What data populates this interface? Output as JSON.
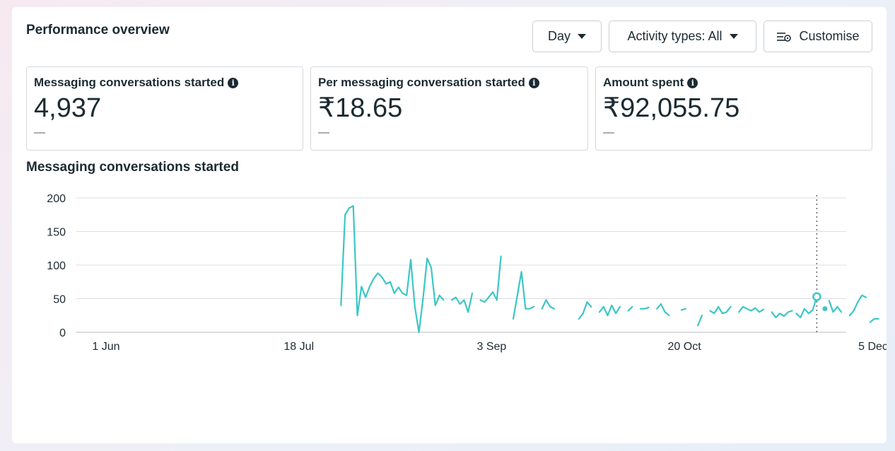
{
  "header": {
    "title": "Performance overview",
    "day_label": "Day",
    "activity_label": "Activity types: All",
    "customise_label": "Customise"
  },
  "cards": [
    {
      "label": "Messaging conversations started",
      "value": "4,937",
      "delta": "—"
    },
    {
      "label": "Per messaging conversation started",
      "value": "₹18.65",
      "delta": "—"
    },
    {
      "label": "Amount spent",
      "value": "₹92,055.75",
      "delta": "—"
    }
  ],
  "colors": {
    "line": "#3cc6c6",
    "grid": "#dcdfe3",
    "text": "#1c2b33"
  },
  "chart_data": {
    "type": "line",
    "title": "Messaging conversations started",
    "x_start": "1 Jun",
    "x_ticks": [
      {
        "label": "1 Jun",
        "day": 0
      },
      {
        "label": "18 Jul",
        "day": 47
      },
      {
        "label": "3 Sep",
        "day": 94
      },
      {
        "label": "20 Oct",
        "day": 141
      },
      {
        "label": "5 Dec",
        "day": 187
      }
    ],
    "y_ticks": [
      0,
      50,
      100,
      150,
      200
    ],
    "ylim": [
      0,
      200
    ],
    "xlim": [
      0,
      187
    ],
    "highlight_day": 175,
    "segments": [
      [
        [
          59,
          40
        ],
        [
          60,
          175
        ],
        [
          61,
          185
        ],
        [
          62,
          188
        ],
        [
          63,
          25
        ],
        [
          64,
          68
        ],
        [
          65,
          52
        ],
        [
          66,
          68
        ],
        [
          67,
          80
        ],
        [
          68,
          88
        ],
        [
          69,
          82
        ],
        [
          70,
          72
        ],
        [
          71,
          75
        ],
        [
          72,
          58
        ],
        [
          73,
          67
        ],
        [
          74,
          58
        ],
        [
          75,
          55
        ],
        [
          76,
          108
        ],
        [
          77,
          38
        ],
        [
          78,
          0
        ],
        [
          79,
          50
        ],
        [
          80,
          110
        ],
        [
          81,
          96
        ],
        [
          82,
          40
        ],
        [
          83,
          55
        ],
        [
          84,
          48
        ]
      ],
      [
        [
          86,
          48
        ],
        [
          87,
          52
        ],
        [
          88,
          42
        ],
        [
          89,
          48
        ],
        [
          90,
          30
        ],
        [
          91,
          58
        ]
      ],
      [
        [
          93,
          48
        ],
        [
          94,
          45
        ],
        [
          95,
          52
        ],
        [
          96,
          60
        ],
        [
          97,
          48
        ],
        [
          98,
          113
        ]
      ],
      [
        [
          101,
          20
        ],
        [
          103,
          90
        ],
        [
          104,
          35
        ],
        [
          105,
          35
        ],
        [
          106,
          38
        ]
      ],
      [
        [
          108,
          35
        ],
        [
          109,
          48
        ],
        [
          110,
          38
        ],
        [
          111,
          35
        ]
      ],
      [
        [
          117,
          20
        ],
        [
          118,
          28
        ],
        [
          119,
          45
        ],
        [
          120,
          38
        ]
      ],
      [
        [
          122,
          30
        ],
        [
          123,
          38
        ],
        [
          124,
          25
        ],
        [
          125,
          40
        ],
        [
          126,
          28
        ],
        [
          127,
          38
        ]
      ],
      [
        [
          129,
          32
        ],
        [
          130,
          38
        ]
      ],
      [
        [
          132,
          35
        ],
        [
          133,
          35
        ],
        [
          134,
          37
        ]
      ],
      [
        [
          136,
          35
        ],
        [
          137,
          42
        ],
        [
          138,
          30
        ],
        [
          139,
          25
        ]
      ],
      [
        [
          142,
          33
        ],
        [
          143,
          35
        ]
      ],
      [
        [
          146,
          10
        ],
        [
          147,
          25
        ]
      ],
      [
        [
          149,
          32
        ],
        [
          150,
          28
        ],
        [
          151,
          38
        ],
        [
          152,
          28
        ],
        [
          153,
          30
        ],
        [
          154,
          38
        ]
      ],
      [
        [
          156,
          30
        ],
        [
          157,
          38
        ],
        [
          158,
          35
        ],
        [
          159,
          32
        ],
        [
          160,
          36
        ],
        [
          161,
          30
        ],
        [
          162,
          34
        ]
      ],
      [
        [
          164,
          30
        ],
        [
          165,
          22
        ],
        [
          166,
          28
        ],
        [
          167,
          24
        ],
        [
          168,
          30
        ],
        [
          169,
          32
        ]
      ],
      [
        [
          170,
          28
        ],
        [
          171,
          22
        ],
        [
          172,
          35
        ],
        [
          173,
          28
        ],
        [
          174,
          33
        ],
        [
          175,
          53
        ]
      ],
      [
        [
          178,
          47
        ],
        [
          179,
          30
        ],
        [
          180,
          38
        ],
        [
          181,
          30
        ]
      ],
      [
        [
          183,
          25
        ],
        [
          184,
          32
        ],
        [
          185,
          45
        ],
        [
          186,
          55
        ],
        [
          187,
          52
        ]
      ],
      [
        [
          188,
          15
        ],
        [
          189,
          20
        ],
        [
          190,
          20
        ]
      ]
    ],
    "points": [
      [
        177,
        35
      ]
    ]
  }
}
